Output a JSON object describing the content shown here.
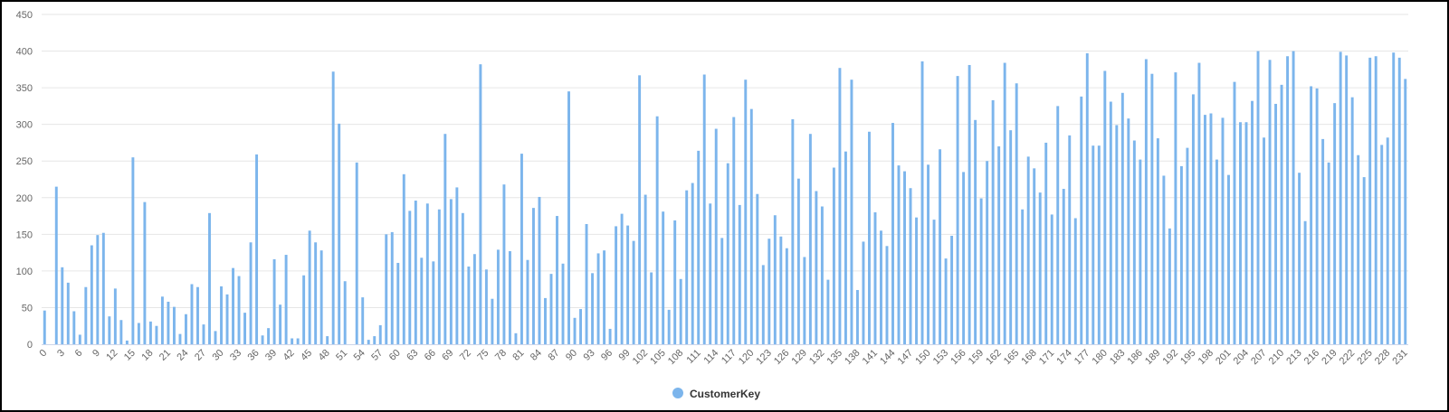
{
  "chart_data": {
    "type": "bar",
    "title": "",
    "xlabel": "",
    "ylabel": "",
    "ylim": [
      0,
      450
    ],
    "yticks": [
      0,
      50,
      100,
      150,
      200,
      250,
      300,
      350,
      400,
      450
    ],
    "x_tick_step": 3,
    "grid": true,
    "legend_position": "bottom",
    "bar_color": "#7cb5ec",
    "series": [
      {
        "name": "CustomerKey",
        "values": [
          46,
          0,
          215,
          105,
          84,
          45,
          13,
          78,
          135,
          149,
          152,
          38,
          76,
          33,
          5,
          255,
          29,
          194,
          31,
          25,
          65,
          58,
          51,
          14,
          41,
          82,
          78,
          27,
          179,
          18,
          79,
          68,
          104,
          93,
          43,
          139,
          259,
          12,
          22,
          116,
          54,
          122,
          8,
          8,
          94,
          155,
          139,
          128,
          11,
          372,
          301,
          86,
          0,
          248,
          64,
          6,
          11,
          26,
          150,
          153,
          111,
          232,
          182,
          196,
          118,
          192,
          113,
          184,
          287,
          198,
          214,
          179,
          106,
          123,
          382,
          102,
          62,
          129,
          218,
          127,
          15,
          260,
          115,
          186,
          201,
          63,
          96,
          175,
          110,
          345,
          36,
          48,
          164,
          97,
          124,
          128,
          21,
          161,
          178,
          162,
          141,
          367,
          204,
          98,
          311,
          181,
          47,
          169,
          89,
          210,
          220,
          264,
          368,
          192,
          294,
          145,
          247,
          310,
          190,
          361,
          321,
          205,
          108,
          144,
          176,
          147,
          131,
          307,
          226,
          119,
          287,
          209,
          188,
          88,
          241,
          377,
          263,
          361,
          74,
          140,
          290,
          180,
          155,
          134,
          302,
          244,
          236,
          213,
          173,
          386,
          245,
          170,
          266,
          117,
          148,
          366,
          235,
          381,
          306,
          199,
          250,
          333,
          270,
          384,
          292,
          356,
          184,
          256,
          240,
          207,
          275,
          177,
          325,
          212,
          285,
          172,
          338,
          397,
          271,
          271,
          373,
          331,
          299,
          343,
          308,
          278,
          252,
          389,
          369,
          281,
          230,
          158,
          371,
          243,
          268,
          341,
          384,
          313,
          315,
          252,
          309,
          231,
          358,
          303,
          303,
          332,
          400,
          282,
          388,
          328,
          354,
          393,
          400,
          234,
          168,
          352,
          349,
          280,
          248,
          329,
          399,
          394,
          337,
          258,
          228,
          391,
          393,
          272,
          282,
          398,
          391,
          362
        ]
      }
    ]
  }
}
